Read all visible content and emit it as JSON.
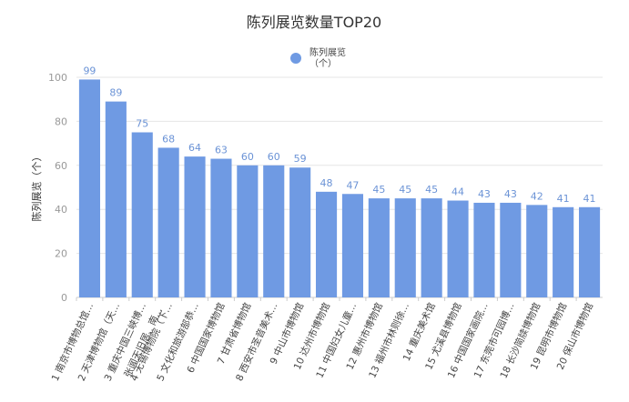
{
  "chart_data": {
    "type": "bar",
    "title": "陈列展览数量TOP20",
    "xlabel": "",
    "ylabel": "陈列展览（个）",
    "legend": {
      "name_line1": "陈列展览",
      "name_line2": "（个）",
      "placement": "top-center"
    },
    "color": "#6f9ae3",
    "ylim": [
      0,
      100
    ],
    "yticks": [
      0,
      20,
      40,
      60,
      80,
      100
    ],
    "grid": true,
    "categories": [
      "1 南京市博物总馆...",
      "2 天津博物馆（天...",
      "3 重庆中国三峡博...",
      "4 无锡博物院（下...",
      "5 文化和旅游部恭...",
      "6 中国国家博物馆",
      "7 甘肃省博物馆",
      "8 西安市圣音美术...",
      "9 中山市博物馆",
      "10 达州市博物馆",
      "11 中国妇女儿童...",
      "12 惠州市博物馆",
      "13 福州市林则徐...",
      "14 重庆美术馆",
      "15 尤溪县博物馆",
      "16 中国国家画院...",
      "17 东莞市可园博...",
      "18 长沙简牍博物馆",
      "19 昆明市博物馆",
      "20 保山市博物馆"
    ],
    "category_note": "张闻天旧居、南...",
    "values": [
      99,
      89,
      75,
      68,
      64,
      63,
      60,
      60,
      59,
      48,
      47,
      45,
      45,
      45,
      44,
      43,
      43,
      42,
      41,
      41
    ]
  }
}
